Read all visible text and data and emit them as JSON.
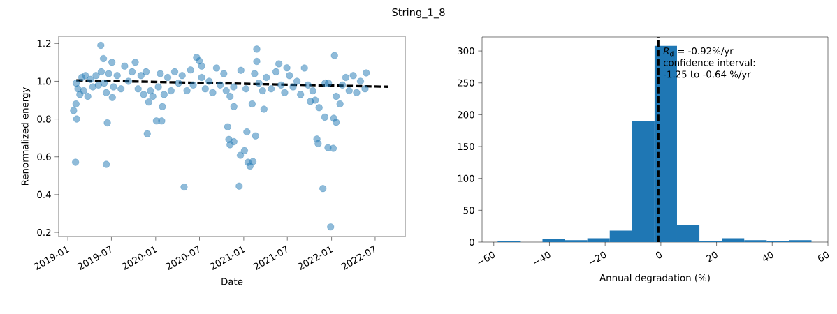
{
  "chart_data": [
    {
      "type": "scatter",
      "title": "String_1_8",
      "xlabel": "Date",
      "ylabel": "Renormalized energy",
      "xlim": [
        "2018-11-24",
        "2022-11-03"
      ],
      "xticks": [
        "2019-01",
        "2019-07",
        "2020-01",
        "2020-07",
        "2021-01",
        "2021-07",
        "2022-01",
        "2022-07"
      ],
      "ylim": [
        0.178,
        1.238
      ],
      "yticks": [
        0.2,
        0.4,
        0.6,
        0.8,
        {
          "value": 1.0,
          "label": "1.0"
        },
        1.2
      ],
      "series": [
        {
          "type": "scatter",
          "marker": "circle",
          "color": "#1f77b4",
          "x": [
            "2019-01-25",
            "2019-02-04",
            "2019-02-07",
            "2019-02-02",
            "2019-05-18",
            "2019-05-29",
            "2019-06-14",
            "2019-06-10",
            "2019-07-03",
            "2019-07-05",
            "2019-11-27",
            "2019-12-03",
            "2020-01-04",
            "2020-01-26",
            "2020-01-29",
            "2020-04-28",
            "2020-06-19",
            "2020-06-30",
            "2020-07-10",
            "2020-10-26",
            "2020-10-31",
            "2020-11-05",
            "2020-11-21",
            "2020-11-21",
            "2020-12-13",
            "2020-12-20",
            "2020-12-18",
            "2021-01-04",
            "2021-01-14",
            "2021-01-19",
            "2021-01-27",
            "2021-02-08",
            "2021-02-19",
            "2021-02-24",
            "2021-02-24",
            "2021-03-26",
            "2021-05-27",
            "2021-06-29",
            "2021-10-05",
            "2021-11-01",
            "2021-11-06",
            "2021-11-26",
            "2021-12-04",
            "2021-12-17",
            "2021-12-28",
            "2022-01-08",
            "2022-01-13",
            "2022-01-10",
            "2022-01-20",
            "2021-12-19",
            "2022-05-25",
            "2019-02-05",
            "2019-02-12",
            "2019-02-20",
            "2019-02-28",
            "2019-03-08",
            "2019-03-15",
            "2019-03-25",
            "2019-04-05",
            "2019-04-15",
            "2019-04-28",
            "2019-05-08",
            "2019-05-20",
            "2019-06-01",
            "2019-06-10",
            "2019-06-20",
            "2019-07-10",
            "2019-07-25",
            "2019-08-10",
            "2019-08-25",
            "2019-09-10",
            "2019-09-25",
            "2019-10-08",
            "2019-10-20",
            "2019-11-01",
            "2019-11-12",
            "2019-11-22",
            "2019-12-10",
            "2019-12-20",
            "2020-01-12",
            "2020-01-20",
            "2020-02-05",
            "2020-02-20",
            "2020-03-05",
            "2020-03-20",
            "2020-04-05",
            "2020-04-20",
            "2020-05-10",
            "2020-05-25",
            "2020-06-05",
            "2020-07-10",
            "2020-07-25",
            "2020-08-10",
            "2020-08-25",
            "2020-09-10",
            "2020-09-25",
            "2020-10-10",
            "2020-10-20",
            "2020-11-05",
            "2020-11-20",
            "2021-01-10",
            "2021-02-05",
            "2021-02-15",
            "2021-03-05",
            "2021-03-20",
            "2021-04-05",
            "2021-04-25",
            "2021-05-15",
            "2021-06-05",
            "2021-06-20",
            "2021-07-10",
            "2021-07-25",
            "2021-08-10",
            "2021-08-25",
            "2021-09-10",
            "2021-09-25",
            "2021-10-15",
            "2021-10-25",
            "2021-11-10",
            "2021-12-05",
            "2022-01-20",
            "2022-02-05",
            "2022-02-15",
            "2022-03-01",
            "2022-03-15",
            "2022-04-01",
            "2022-04-15",
            "2022-05-01",
            "2022-05-20"
          ],
          "values": [
            0.845,
            0.88,
            0.8,
            0.571,
            1.19,
            1.12,
            0.78,
            0.56,
            1.1,
            0.914,
            0.722,
            0.89,
            0.79,
            0.79,
            0.866,
            0.44,
            1.126,
            1.108,
            1.08,
            0.759,
            0.692,
            0.664,
            0.68,
            0.866,
            0.445,
            1.058,
            0.608,
            0.633,
            0.732,
            0.571,
            0.551,
            0.575,
            0.711,
            1.17,
            1.105,
            0.852,
            1.092,
            1.071,
            0.893,
            0.694,
            0.67,
            0.432,
            0.81,
            0.649,
            0.229,
            0.645,
            1.136,
            0.804,
            0.783,
            0.99,
            1.044,
            0.99,
            0.96,
            0.93,
            1.02,
            0.95,
            1.03,
            0.92,
            1.01,
            0.97,
            1.03,
            0.98,
            1.05,
            0.99,
            0.94,
            1.04,
            0.97,
            1.03,
            0.96,
            1.08,
            1.0,
            1.05,
            1.1,
            0.96,
            1.03,
            0.93,
            1.05,
            0.95,
            0.92,
            0.97,
            1.04,
            0.93,
            1.02,
            0.95,
            1.05,
            0.99,
            1.03,
            0.95,
            1.06,
            0.98,
            1.02,
            0.96,
            1.0,
            0.94,
            1.07,
            0.98,
            1.04,
            0.95,
            0.92,
            0.97,
            0.96,
            0.88,
            1.04,
            0.99,
            0.95,
            1.02,
            0.96,
            1.05,
            0.98,
            0.94,
            1.03,
            0.97,
            1.0,
            0.93,
            1.07,
            0.98,
            0.95,
            0.9,
            0.86,
            0.99,
            0.92,
            0.88,
            0.98,
            1.02,
            0.95,
            1.03,
            0.94,
            1.0,
            0.96
          ]
        },
        {
          "type": "line",
          "color": "#000000",
          "line_style": "dashed",
          "x": [
            "2019-02-05",
            "2022-08-24"
          ],
          "values": [
            1.005,
            0.971
          ]
        }
      ]
    },
    {
      "type": "histogram",
      "xlabel": "Annual degradation (%)",
      "color": "#1f77b4",
      "bins": [
        -58.6,
        -50.55,
        -42.5,
        -34.45,
        -26.4,
        -18.35,
        -10.3,
        -2.25,
        5.8,
        13.85,
        21.9,
        29.95,
        38.0,
        46.05,
        54.1
      ],
      "values": [
        1,
        0,
        5,
        3,
        6,
        18,
        190,
        308,
        27,
        1,
        6,
        3,
        1,
        3
      ],
      "xlim": [
        -64.2,
        60
      ],
      "xticks": [
        {
          "value": -60,
          "label": "−60"
        },
        {
          "value": -40,
          "label": "−40"
        },
        {
          "value": -20,
          "label": "−20"
        },
        0,
        20,
        40,
        60
      ],
      "ylim": [
        0,
        322
      ],
      "yticks": [
        0,
        50,
        100,
        150,
        200,
        250,
        300
      ],
      "ref_lines": [
        {
          "axis": "x",
          "value": -0.92,
          "color": "#000000",
          "line_style": "dashed"
        }
      ],
      "annotations": [
        "*R*$_{d}$ = -0.92%/yr",
        "confidence interval:",
        "-1.25 to -0.64 %/yr"
      ]
    }
  ]
}
